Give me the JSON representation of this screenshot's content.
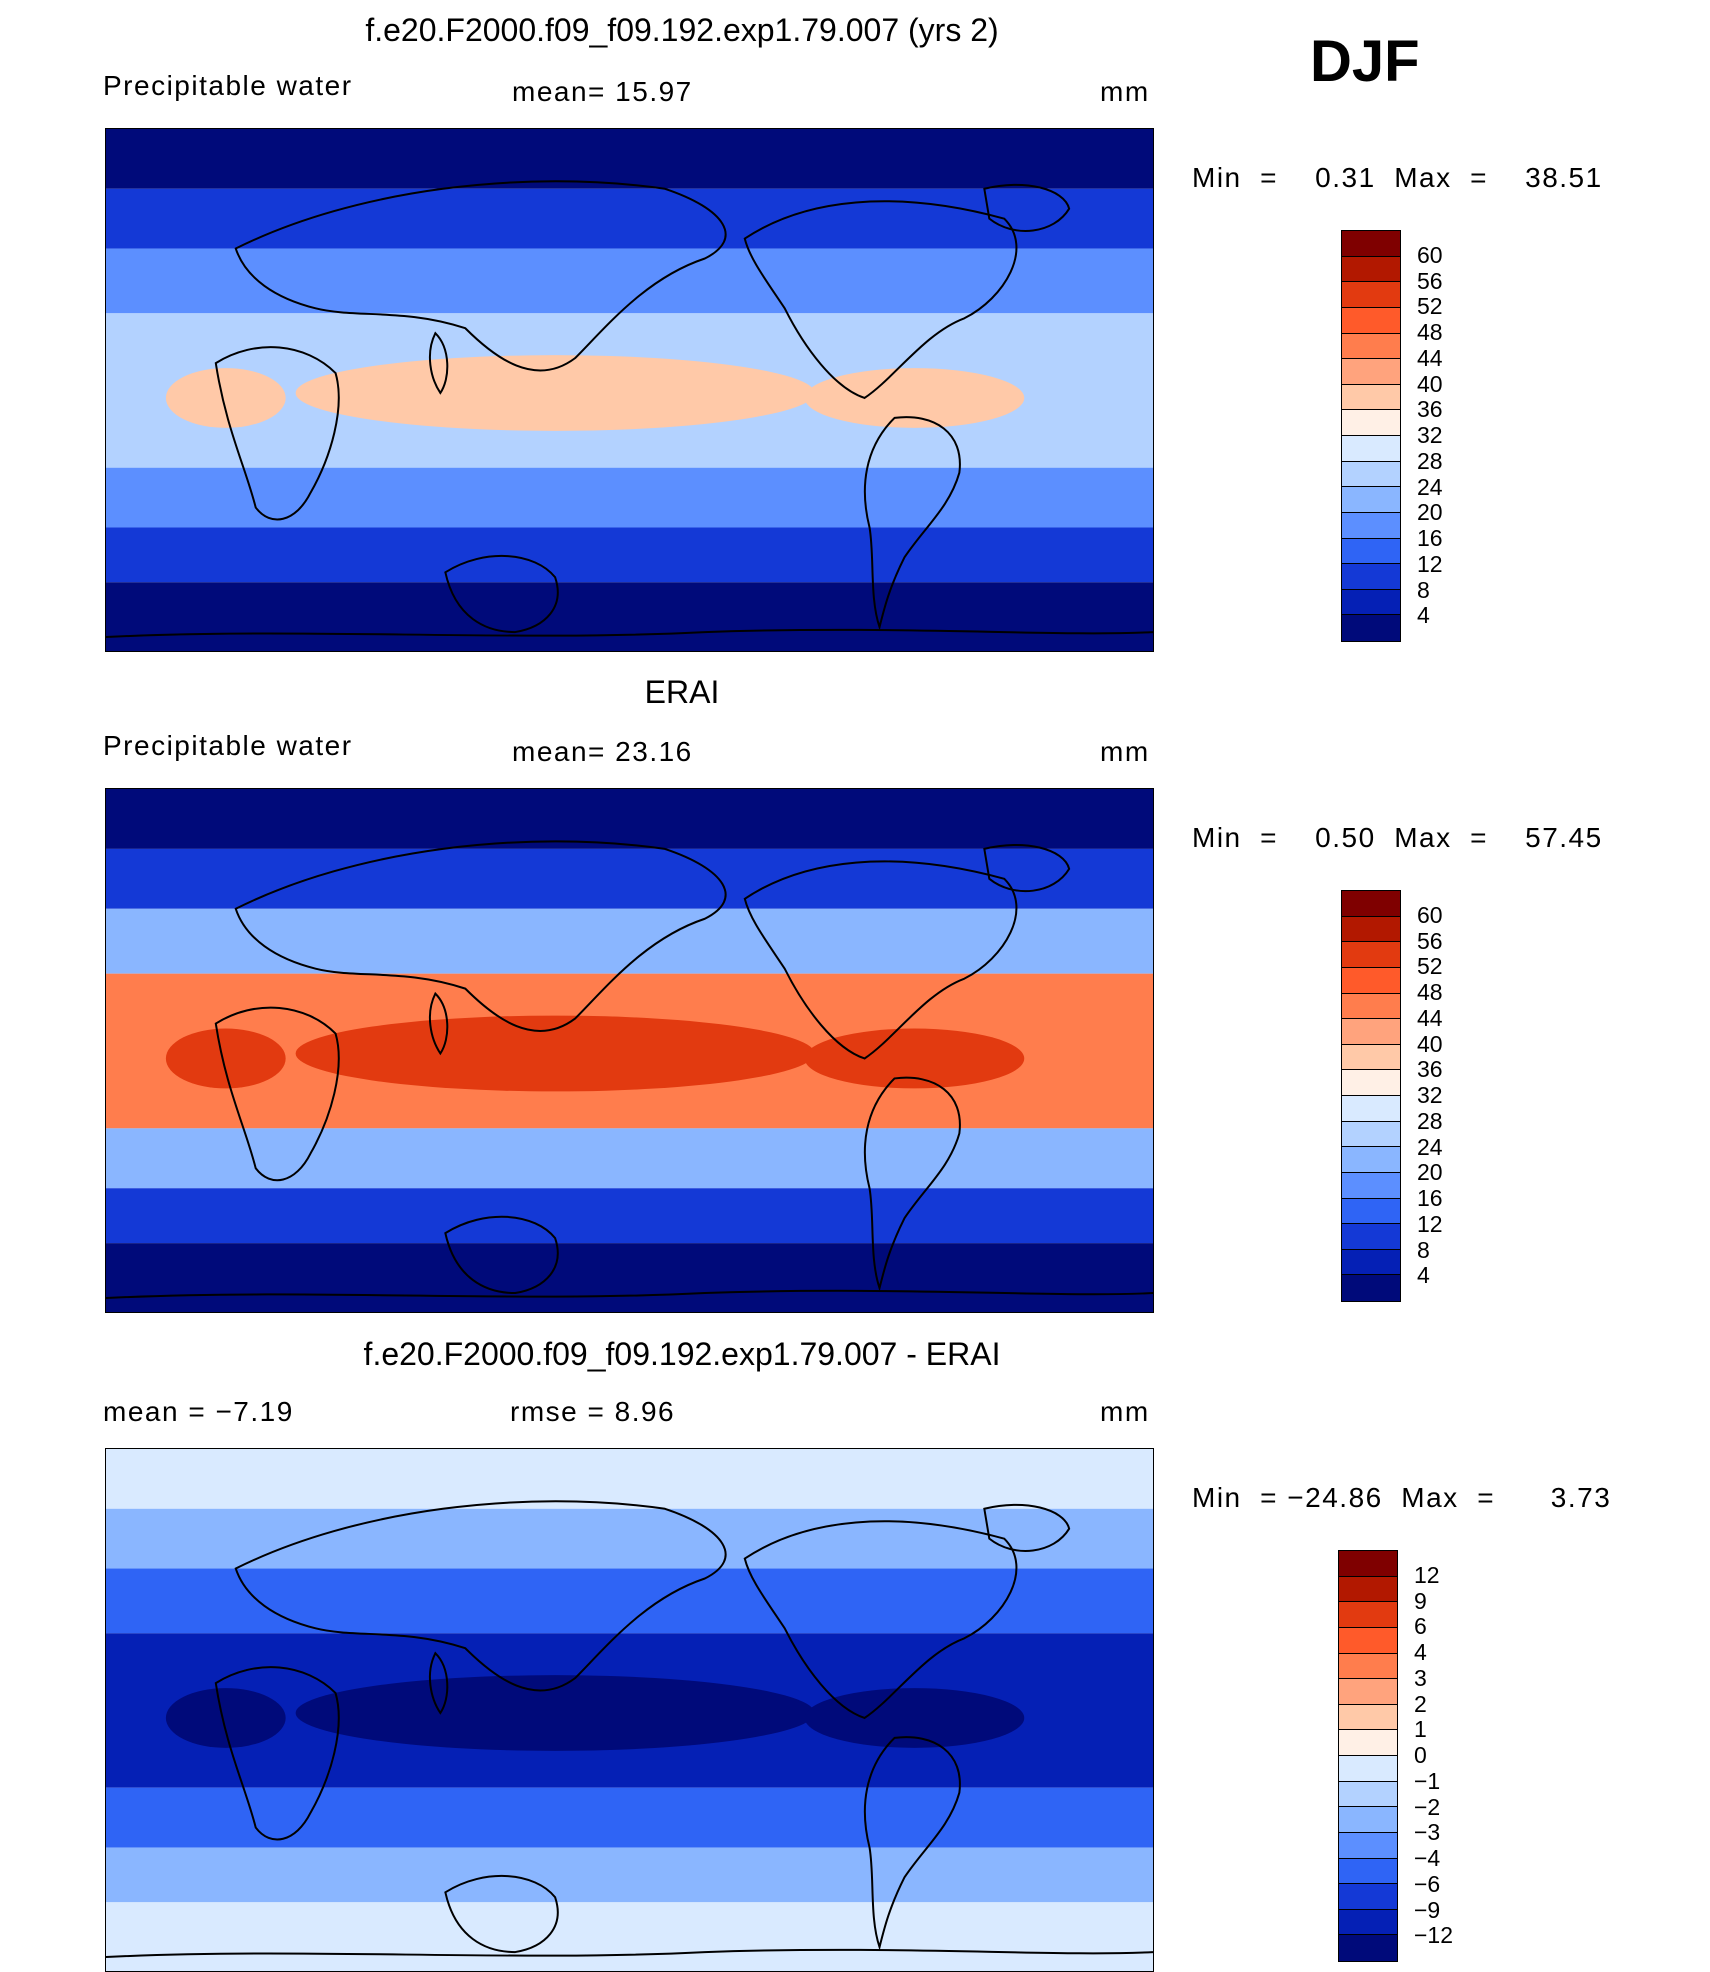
{
  "season": "DJF",
  "panels": [
    {
      "title": "f.e20.F2000.f09_f09.192.exp1.79.007 (yrs 2)",
      "left_label": "Precipitable  water",
      "center_label": "mean=   15.97",
      "unit": "mm",
      "minmax": "Min  =    0.31  Max  =    38.51",
      "colorbar": {
        "labels": [
          "60",
          "56",
          "52",
          "48",
          "44",
          "40",
          "36",
          "32",
          "28",
          "24",
          "20",
          "16",
          "12",
          "8",
          "4"
        ],
        "colors": [
          "#7f0000",
          "#b21800",
          "#e23a10",
          "#ff5a2a",
          "#ff7d4d",
          "#ffa37d",
          "#ffc9a8",
          "#fff0e6",
          "#d9eaff",
          "#b3d2ff",
          "#8ab6ff",
          "#5c8fff",
          "#2f64f5",
          "#1439d6",
          "#0520b5",
          "#000a7a"
        ]
      },
      "map_colors": {
        "polar": "#000a7a",
        "mid": "#1439d6",
        "subtrop": "#5c8fff",
        "trop": "#b3d2ff",
        "core": "#ffc9a8"
      }
    },
    {
      "title": "ERAI",
      "left_label": "Precipitable  water",
      "center_label": "mean=   23.16",
      "unit": "mm",
      "minmax": "Min  =    0.50  Max  =    57.45",
      "colorbar": {
        "labels": [
          "60",
          "56",
          "52",
          "48",
          "44",
          "40",
          "36",
          "32",
          "28",
          "24",
          "20",
          "16",
          "12",
          "8",
          "4"
        ],
        "colors": [
          "#7f0000",
          "#b21800",
          "#e23a10",
          "#ff5a2a",
          "#ff7d4d",
          "#ffa37d",
          "#ffc9a8",
          "#fff0e6",
          "#d9eaff",
          "#b3d2ff",
          "#8ab6ff",
          "#5c8fff",
          "#2f64f5",
          "#1439d6",
          "#0520b5",
          "#000a7a"
        ]
      },
      "map_colors": {
        "polar": "#000a7a",
        "mid": "#1439d6",
        "subtrop": "#8ab6ff",
        "trop": "#ff7d4d",
        "core": "#e23a10"
      }
    },
    {
      "title": "f.e20.F2000.f09_f09.192.exp1.79.007 - ERAI",
      "left_label": "mean  =    −7.19",
      "center_label": "rmse  =     8.96",
      "unit": "mm",
      "minmax": "Min  = −24.86  Max  =      3.73",
      "colorbar": {
        "labels": [
          "12",
          "9",
          "6",
          "4",
          "3",
          "2",
          "1",
          "0",
          "−1",
          "−2",
          "−3",
          "−4",
          "−6",
          "−9",
          "−12"
        ],
        "colors": [
          "#7f0000",
          "#b21800",
          "#e23a10",
          "#ff5a2a",
          "#ff7d4d",
          "#ffa37d",
          "#ffc9a8",
          "#fff0e6",
          "#d9eaff",
          "#b3d2ff",
          "#8ab6ff",
          "#5c8fff",
          "#2f64f5",
          "#1439d6",
          "#0520b5",
          "#000a7a"
        ]
      },
      "map_colors": {
        "polar": "#d9eaff",
        "mid": "#8ab6ff",
        "subtrop": "#2f64f5",
        "trop": "#0520b5",
        "core": "#000a7a"
      }
    }
  ]
}
